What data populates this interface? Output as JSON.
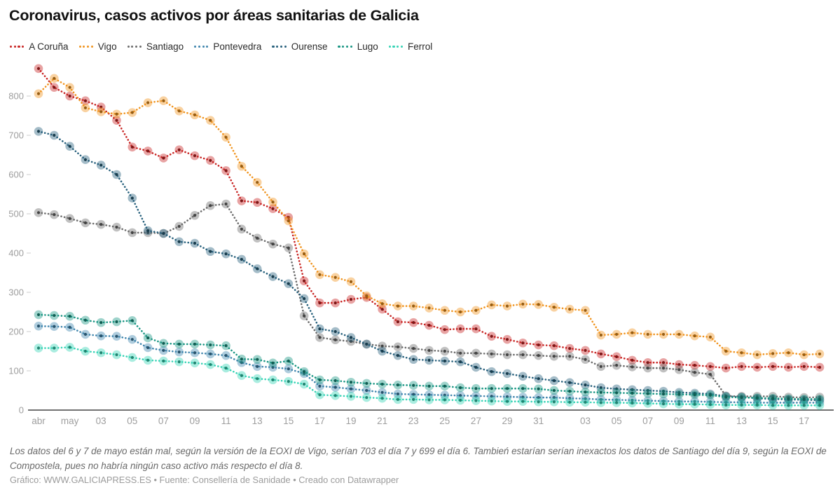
{
  "header": {
    "title": "Coronavirus, casos activos por áreas sanitarias de Galicia"
  },
  "footer": {
    "note": "Los datos del 6 y 7 de mayo están mal, según la versión de la EOXI de Vigo, serían 703 el día 7 y 699 el día 6. Tambień estarían serían inexactos los datos de Santiago del día 9, según la EOXI de Compostela, pues no habría ningún caso activo más respecto el día 8.",
    "credit": "Gráfico: WWW.GALICIAPRESS.ES • Fuente: Consellería de Sanidade • Creado con Datawrapper"
  },
  "chart_data": {
    "type": "line",
    "title": "Coronavirus, casos activos por áreas sanitarias de Galicia",
    "style": "dotted lines with translucent round markers (Datawrapper)",
    "legend_position": "top",
    "grid": "baseline-only",
    "ylim": [
      0,
      880
    ],
    "y_ticks": [
      0,
      100,
      200,
      300,
      400,
      500,
      600,
      700,
      800
    ],
    "x": [
      "29 abr",
      "30 abr",
      "1 may",
      "2 may",
      "3 may",
      "4 may",
      "5 may",
      "6 may",
      "7 may",
      "8 may",
      "9 may",
      "10 may",
      "11 may",
      "12 may",
      "13 may",
      "14 may",
      "15 may",
      "16 may",
      "17 may",
      "18 may",
      "19 may",
      "20 may",
      "21 may",
      "22 may",
      "23 may",
      "24 may",
      "25 may",
      "26 may",
      "27 may",
      "28 may",
      "29 may",
      "30 may",
      "31 may",
      "1 jun",
      "2 jun",
      "3 jun",
      "4 jun",
      "5 jun",
      "6 jun",
      "7 jun",
      "8 jun",
      "9 jun",
      "10 jun",
      "11 jun",
      "12 jun",
      "13 jun",
      "14 jun",
      "15 jun",
      "16 jun",
      "17 jun",
      "18 jun"
    ],
    "x_ticks": [
      {
        "index": 0,
        "label": "abr"
      },
      {
        "index": 2,
        "label": "may"
      },
      {
        "index": 4,
        "label": "03"
      },
      {
        "index": 6,
        "label": "05"
      },
      {
        "index": 8,
        "label": "07"
      },
      {
        "index": 10,
        "label": "09"
      },
      {
        "index": 12,
        "label": "11"
      },
      {
        "index": 14,
        "label": "13"
      },
      {
        "index": 16,
        "label": "15"
      },
      {
        "index": 18,
        "label": "17"
      },
      {
        "index": 20,
        "label": "19"
      },
      {
        "index": 22,
        "label": "21"
      },
      {
        "index": 24,
        "label": "23"
      },
      {
        "index": 26,
        "label": "25"
      },
      {
        "index": 28,
        "label": "27"
      },
      {
        "index": 30,
        "label": "29"
      },
      {
        "index": 32,
        "label": "31"
      },
      {
        "index": 35,
        "label": "03"
      },
      {
        "index": 37,
        "label": "05"
      },
      {
        "index": 39,
        "label": "07"
      },
      {
        "index": 41,
        "label": "09"
      },
      {
        "index": 43,
        "label": "11"
      },
      {
        "index": 45,
        "label": "13"
      },
      {
        "index": 47,
        "label": "15"
      },
      {
        "index": 49,
        "label": "17"
      }
    ],
    "series": [
      {
        "name": "A Coruña",
        "color": "#c82423",
        "values": [
          870,
          822,
          800,
          788,
          772,
          738,
          670,
          660,
          642,
          663,
          648,
          636,
          610,
          533,
          529,
          513,
          491,
          329,
          273,
          273,
          282,
          287,
          257,
          225,
          223,
          216,
          205,
          207,
          207,
          188,
          180,
          171,
          166,
          164,
          157,
          152,
          143,
          136,
          127,
          121,
          121,
          116,
          114,
          111,
          107,
          111,
          109,
          111,
          109,
          111,
          109
        ]
      },
      {
        "name": "Vigo",
        "color": "#f0941f",
        "values": [
          806,
          845,
          822,
          770,
          760,
          754,
          758,
          783,
          788,
          762,
          752,
          738,
          695,
          621,
          580,
          530,
          482,
          398,
          345,
          338,
          327,
          291,
          271,
          265,
          265,
          260,
          254,
          250,
          254,
          268,
          265,
          270,
          269,
          262,
          257,
          254,
          191,
          193,
          197,
          193,
          193,
          193,
          189,
          186,
          150,
          146,
          141,
          144,
          146,
          141,
          143
        ]
      },
      {
        "name": "Santiago",
        "color": "#6b6b6b",
        "values": [
          503,
          498,
          488,
          477,
          473,
          466,
          452,
          452,
          450,
          468,
          496,
          521,
          525,
          461,
          438,
          423,
          413,
          240,
          185,
          179,
          175,
          168,
          163,
          161,
          157,
          152,
          150,
          145,
          145,
          143,
          141,
          141,
          139,
          137,
          137,
          129,
          111,
          114,
          110,
          107,
          107,
          103,
          96,
          91,
          36,
          35,
          35,
          35,
          33,
          32,
          33
        ]
      },
      {
        "name": "Pontevedra",
        "color": "#3f85ad",
        "values": [
          214,
          213,
          211,
          193,
          189,
          188,
          180,
          159,
          152,
          148,
          146,
          143,
          139,
          121,
          111,
          109,
          105,
          93,
          61,
          58,
          54,
          50,
          45,
          41,
          40,
          39,
          38,
          37,
          36,
          35,
          34,
          33,
          32,
          32,
          30,
          29,
          27,
          26,
          25,
          24,
          23,
          22,
          22,
          21,
          20,
          20,
          19,
          19,
          19,
          19,
          19
        ]
      },
      {
        "name": "Ourense",
        "color": "#27607c",
        "values": [
          710,
          700,
          672,
          638,
          624,
          600,
          540,
          457,
          450,
          429,
          425,
          404,
          398,
          384,
          360,
          340,
          322,
          284,
          207,
          200,
          185,
          168,
          150,
          139,
          129,
          127,
          125,
          123,
          109,
          98,
          93,
          86,
          80,
          75,
          70,
          64,
          57,
          54,
          52,
          50,
          48,
          45,
          43,
          41,
          35,
          33,
          30,
          28,
          27,
          26,
          25
        ]
      },
      {
        "name": "Lugo",
        "color": "#189582",
        "values": [
          243,
          241,
          239,
          229,
          223,
          225,
          228,
          184,
          170,
          168,
          168,
          166,
          164,
          130,
          129,
          120,
          125,
          98,
          77,
          75,
          71,
          68,
          66,
          64,
          63,
          61,
          61,
          57,
          55,
          55,
          55,
          55,
          54,
          50,
          48,
          46,
          45,
          44,
          43,
          42,
          41,
          40,
          39,
          38,
          33,
          32,
          31,
          30,
          29,
          28,
          28
        ]
      },
      {
        "name": "Ferrol",
        "color": "#35d3b5",
        "values": [
          158,
          158,
          160,
          150,
          146,
          141,
          134,
          127,
          125,
          123,
          120,
          116,
          107,
          88,
          80,
          77,
          73,
          66,
          39,
          37,
          35,
          32,
          30,
          27,
          27,
          26,
          26,
          25,
          24,
          23,
          22,
          22,
          21,
          21,
          20,
          20,
          19,
          19,
          18,
          17,
          16,
          15,
          15,
          14,
          13,
          13,
          13,
          12,
          12,
          12,
          12
        ]
      }
    ]
  }
}
